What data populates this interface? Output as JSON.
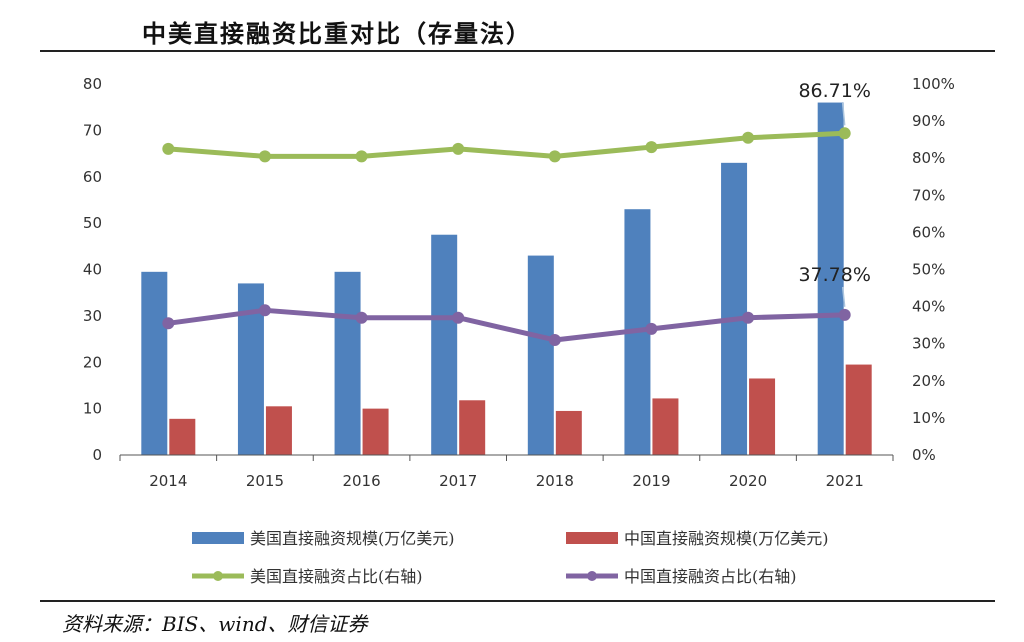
{
  "header": {
    "title": "中美直接融资比重对比（存量法）"
  },
  "footer": {
    "source": "资料来源：BIS、wind、财信证券"
  },
  "colors": {
    "us_bar": "#4F81BD",
    "cn_bar": "#C0504D",
    "us_line": "#9BBB59",
    "cn_line": "#8064A2",
    "axis": "#555555",
    "text": "#333333"
  },
  "chart_data": {
    "type": "bar",
    "title": "中美直接融资比重对比（存量法）",
    "categories": [
      "2014",
      "2015",
      "2016",
      "2017",
      "2018",
      "2019",
      "2020",
      "2021"
    ],
    "xlabel": "",
    "ylabel": "",
    "ylim": [
      0,
      80
    ],
    "yticks": [
      "0",
      "10",
      "20",
      "30",
      "40",
      "50",
      "60",
      "70",
      "80"
    ],
    "y2lim": [
      0,
      100
    ],
    "y2ticks": [
      "0%",
      "10%",
      "20%",
      "30%",
      "40%",
      "50%",
      "60%",
      "70%",
      "80%",
      "90%",
      "100%"
    ],
    "grid": false,
    "legend_position": "bottom",
    "series": [
      {
        "name": "美国直接融资规模(万亿美元)",
        "type": "bar",
        "axis": "left",
        "values": [
          39.5,
          37,
          39.5,
          47.5,
          43,
          53,
          63,
          76
        ]
      },
      {
        "name": "中国直接融资规模(万亿美元)",
        "type": "bar",
        "axis": "left",
        "values": [
          7.8,
          10.5,
          10,
          11.8,
          9.5,
          12.2,
          16.5,
          19.5
        ]
      },
      {
        "name": "美国直接融资占比(右轴)",
        "type": "line",
        "axis": "right",
        "values": [
          82.5,
          80.5,
          80.5,
          82.5,
          80.5,
          83,
          85.5,
          86.71
        ]
      },
      {
        "name": "中国直接融资占比(右轴)",
        "type": "line",
        "axis": "right",
        "values": [
          35.5,
          39,
          37,
          37,
          31,
          34,
          37,
          37.78
        ]
      }
    ],
    "annotations": [
      {
        "series": 2,
        "index": 7,
        "text": "86.71%"
      },
      {
        "series": 3,
        "index": 7,
        "text": "37.78%"
      }
    ]
  }
}
